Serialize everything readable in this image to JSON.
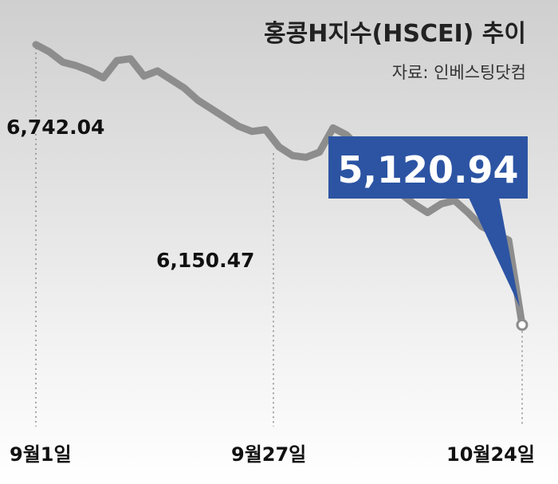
{
  "chart_data": {
    "type": "line",
    "title": "홍콩H지수(HSCEI) 추이",
    "source": "자료: 인베스팅닷컴",
    "x_labels": [
      "9월1일",
      "9월27일",
      "10월24일"
    ],
    "annotations": {
      "start": "6,742.04",
      "mid": "6,150.47",
      "end": "5,120.94"
    },
    "series": [
      {
        "values": [
          6742.04,
          6700,
          6640,
          6620,
          6590,
          6550,
          6650,
          6660,
          6560,
          6590,
          6540,
          6490,
          6420,
          6370,
          6320,
          6270,
          6240,
          6250,
          6150.47,
          6100,
          6090,
          6120,
          6260,
          6220,
          6140,
          6030,
          5940,
          5880,
          5820,
          5770,
          5820,
          5840,
          5770,
          5690,
          5650,
          5610,
          5120.94
        ]
      }
    ],
    "ylim": [
      4200,
      7000
    ],
    "colors": {
      "line": "#8d8d8d",
      "callout": "#2c54a3",
      "background_top": "#cfcfcf",
      "background_bottom": "#ffffff"
    }
  }
}
